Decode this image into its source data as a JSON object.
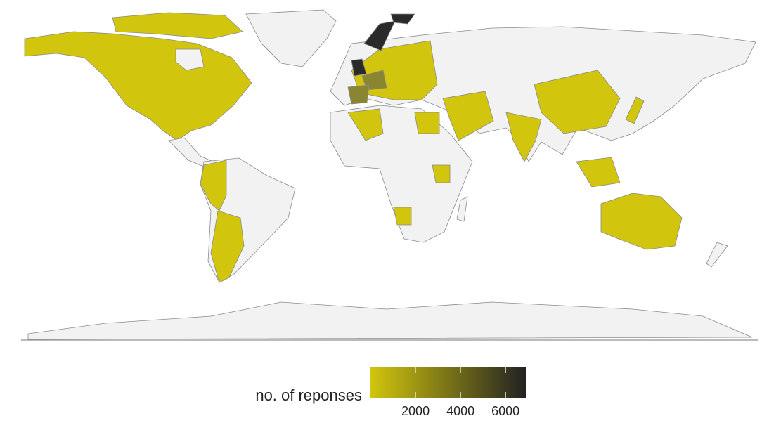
{
  "chart_data": {
    "type": "choropleth",
    "legend_title": "no. of reponses",
    "colorbar": {
      "lim": [
        0,
        6900
      ],
      "ticks": [
        2000,
        4000,
        6000
      ],
      "low_color": "#d1c50d",
      "high_color": "#222222"
    }
  }
}
